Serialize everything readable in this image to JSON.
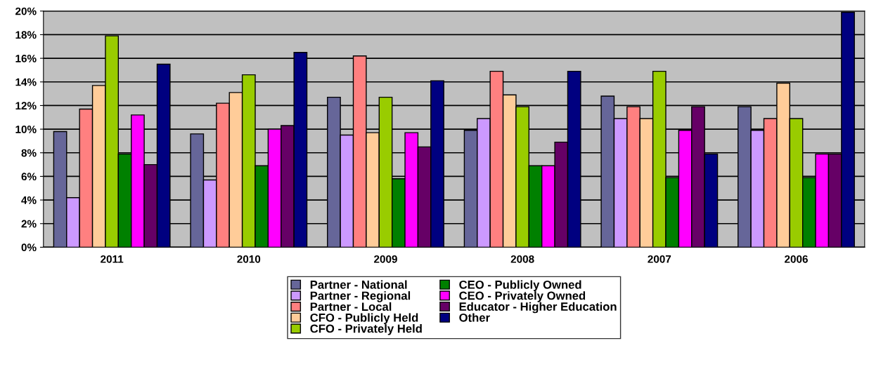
{
  "chart_data": {
    "type": "bar",
    "categories": [
      "2011",
      "2010",
      "2009",
      "2008",
      "2007",
      "2006"
    ],
    "series": [
      {
        "name": "Partner - National",
        "color": "#666699",
        "values": [
          9.8,
          9.6,
          12.7,
          9.9,
          12.8,
          11.9
        ]
      },
      {
        "name": "Partner - Regional",
        "color": "#cc99ff",
        "values": [
          4.2,
          5.7,
          9.5,
          10.9,
          10.9,
          9.9
        ]
      },
      {
        "name": "Partner - Local",
        "color": "#ff8080",
        "values": [
          11.7,
          12.2,
          16.2,
          14.9,
          11.9,
          10.9
        ]
      },
      {
        "name": "CFO - Publicly Held",
        "color": "#ffcc99",
        "values": [
          13.7,
          13.1,
          9.7,
          12.9,
          10.9,
          13.9
        ]
      },
      {
        "name": "CFO - Privately Held",
        "color": "#99cc00",
        "values": [
          17.9,
          14.6,
          12.7,
          11.9,
          14.9,
          10.9
        ]
      },
      {
        "name": "CEO - Publicly Owned",
        "color": "#008000",
        "values": [
          7.9,
          6.9,
          5.8,
          6.9,
          5.9,
          5.9
        ]
      },
      {
        "name": "CEO - Privately Owned",
        "color": "#ff00ff",
        "values": [
          11.2,
          10.0,
          9.7,
          6.9,
          9.9,
          7.9
        ]
      },
      {
        "name": "Educator - Higher Education",
        "color": "#660066",
        "values": [
          7.0,
          10.3,
          8.5,
          8.9,
          11.9,
          7.9
        ]
      },
      {
        "name": "Other",
        "color": "#000080",
        "values": [
          15.5,
          16.5,
          14.1,
          14.9,
          7.9,
          19.9
        ]
      }
    ],
    "ylim": [
      0,
      20
    ],
    "yticks": [
      {
        "value": 0,
        "label": "0%"
      },
      {
        "value": 2,
        "label": "2%"
      },
      {
        "value": 4,
        "label": "4%"
      },
      {
        "value": 6,
        "label": "6%"
      },
      {
        "value": 8,
        "label": "8%"
      },
      {
        "value": 10,
        "label": "10%"
      },
      {
        "value": 12,
        "label": "12%"
      },
      {
        "value": 14,
        "label": "14%"
      },
      {
        "value": 16,
        "label": "16%"
      },
      {
        "value": 18,
        "label": "18%"
      },
      {
        "value": 20,
        "label": "20%"
      }
    ],
    "grid": "y",
    "legend": "bottom"
  }
}
